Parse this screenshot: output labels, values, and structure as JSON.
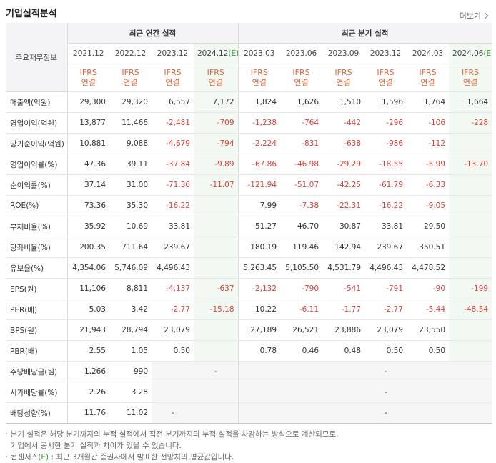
{
  "title": "기업실적분석",
  "more_label": "더보기",
  "corner_label": "주요재무정보",
  "groups": {
    "annual": "최근 연간 실적",
    "quarterly": "최근 분기 실적"
  },
  "periods": [
    "2021.12",
    "2022.12",
    "2023.12",
    "2024.12",
    "2023.03",
    "2023.06",
    "2023.09",
    "2023.12",
    "2024.03",
    "2024.06"
  ],
  "estimate_mark": "(E)",
  "ifrs_line1": "IFRS",
  "ifrs_line2": "연결",
  "rows": [
    {
      "label": "매출액(억원)",
      "values": [
        "29,300",
        "29,320",
        "6,557",
        "7,172",
        "1,824",
        "1,626",
        "1,510",
        "1,596",
        "1,764",
        "1,664"
      ]
    },
    {
      "label": "영업이익(억원)",
      "values": [
        "13,877",
        "11,466",
        "-2,481",
        "-709",
        "-1,238",
        "-764",
        "-442",
        "-296",
        "-106",
        "-228"
      ]
    },
    {
      "label": "당기순이익(억원)",
      "values": [
        "10,881",
        "9,088",
        "-4,679",
        "-794",
        "-2,224",
        "-831",
        "-638",
        "-986",
        "-112",
        ""
      ]
    },
    {
      "label": "영업이익률(%)",
      "values": [
        "47.36",
        "39.11",
        "-37.84",
        "-9.89",
        "-67.86",
        "-46.98",
        "-29.29",
        "-18.55",
        "-5.99",
        "-13.70"
      ]
    },
    {
      "label": "순이익률(%)",
      "values": [
        "37.14",
        "31.00",
        "-71.36",
        "-11.07",
        "-121.94",
        "-51.07",
        "-42.25",
        "-61.79",
        "-6.33",
        ""
      ]
    },
    {
      "label": "ROE(%)",
      "values": [
        "73.36",
        "35.30",
        "-16.22",
        "",
        "7.99",
        "-7.38",
        "-22.31",
        "-16.22",
        "-9.05",
        ""
      ]
    },
    {
      "label": "부채비율(%)",
      "values": [
        "35.92",
        "10.69",
        "33.81",
        "",
        "51.27",
        "46.70",
        "30.87",
        "33.81",
        "29.50",
        ""
      ]
    },
    {
      "label": "당좌비율(%)",
      "values": [
        "200.35",
        "711.64",
        "239.67",
        "",
        "180.19",
        "119.46",
        "142.94",
        "239.67",
        "350.51",
        ""
      ]
    },
    {
      "label": "유보율(%)",
      "values": [
        "4,354.06",
        "5,746.09",
        "4,496.43",
        "",
        "5,263.45",
        "5,105.50",
        "4,531.79",
        "4,496.43",
        "4,478.52",
        ""
      ]
    },
    {
      "label": "EPS(원)",
      "values": [
        "11,106",
        "8,811",
        "-4,137",
        "-637",
        "-2,132",
        "-790",
        "-541",
        "-791",
        "-90",
        "-199"
      ]
    },
    {
      "label": "PER(배)",
      "values": [
        "5.03",
        "3.42",
        "-2.77",
        "-15.18",
        "10.22",
        "-6.11",
        "-1.77",
        "-2.77",
        "-5.44",
        "-48.54"
      ]
    },
    {
      "label": "BPS(원)",
      "values": [
        "21,943",
        "28,794",
        "23,079",
        "",
        "27,189",
        "26,521",
        "23,886",
        "23,079",
        "23,550",
        ""
      ]
    },
    {
      "label": "PBR(배)",
      "values": [
        "2.55",
        "1.05",
        "0.50",
        "",
        "0.78",
        "0.46",
        "0.48",
        "0.50",
        "0.50",
        ""
      ]
    },
    {
      "label": "주당배당금(원)",
      "values": [
        "1,266",
        "990",
        "",
        "-",
        "",
        "",
        "",
        "-",
        "",
        ""
      ]
    },
    {
      "label": "시가배당률(%)",
      "values": [
        "2.26",
        "3.28",
        "",
        "",
        "",
        "",
        "",
        "-",
        "",
        ""
      ]
    },
    {
      "label": "배당성향(%)",
      "values": [
        "11.76",
        "11.02",
        "-",
        "",
        "",
        "",
        "",
        "-",
        "",
        ""
      ]
    }
  ],
  "notes": [
    "· 분기 실적은 해당 분기까지의 누적 실적에서 직전 분기까지의 누적 실적을 차감하는 방식으로 계산되므로,",
    "  기업에서 공시한 분기 실적과 차이가 있을 수 있습니다.",
    "· 컨센서스(E) : 최근 3개월간 증권사에서 발표한 전망치의 평균값입니다."
  ],
  "colors": {
    "negative": "#e0403a",
    "ifrs": "#e0683a",
    "estimate": "#3a9a3a"
  }
}
